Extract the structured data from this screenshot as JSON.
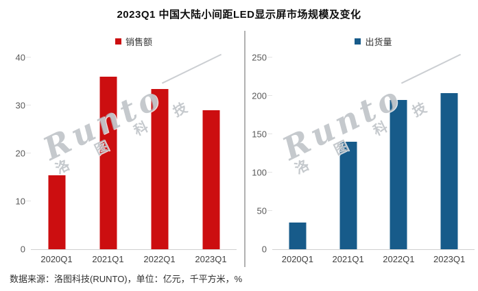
{
  "title": "2023Q1 中国大陆小间距LED显示屏市场规模及变化",
  "source_note": "数据来源：洛图科技(RUNTO)，单位：亿元，千平方米，%",
  "watermark": {
    "brand": "Runto",
    "brand_cn": "洛 图 科 技"
  },
  "colors": {
    "sales_red": "#cc0e10",
    "shipments_blue": "#175b8a",
    "divider_gray": "#b0b0b0"
  },
  "chart_data": [
    {
      "type": "bar",
      "legend": "销售额",
      "unit": "亿元",
      "categories": [
        "2020Q1",
        "2021Q1",
        "2022Q1",
        "2023Q1"
      ],
      "values": [
        15.5,
        36,
        33.5,
        29
      ],
      "ylim": [
        0,
        40
      ],
      "yticks": [
        0,
        10,
        20,
        30,
        40
      ],
      "bar_color": "#cc0e10",
      "legend_position": "top",
      "grid": false,
      "xlabel": "",
      "ylabel": ""
    },
    {
      "type": "bar",
      "legend": "出货量",
      "unit": "千平方米",
      "categories": [
        "2020Q1",
        "2021Q1",
        "2022Q1",
        "2023Q1"
      ],
      "values": [
        35,
        140,
        195,
        204
      ],
      "ylim": [
        0,
        250
      ],
      "yticks": [
        0,
        50,
        100,
        150,
        200,
        250
      ],
      "bar_color": "#175b8a",
      "legend_position": "top",
      "grid": false,
      "xlabel": "",
      "ylabel": ""
    }
  ]
}
